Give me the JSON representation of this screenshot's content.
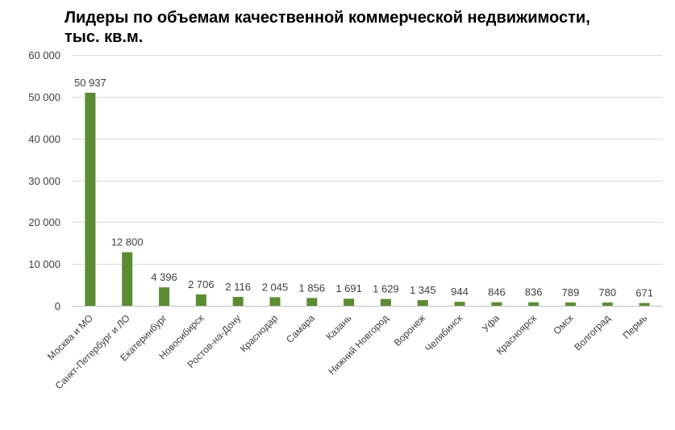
{
  "chart_data": {
    "type": "bar",
    "title_line1": "Лидеры по объемам качественной коммерческой недвижимости,",
    "title_line2": "тыс. кв.м.",
    "categories": [
      "Москва и МО",
      "Санкт-Петербург и ЛО",
      "Екатеринбург",
      "Новосибирск",
      "Ростов-на-Дону",
      "Краснодар",
      "Самара",
      "Казань",
      "Нижний Новгород",
      "Воронеж",
      "Челябинск",
      "Уфа",
      "Красноярск",
      "Омск",
      "Волгоград",
      "Пермь"
    ],
    "values": [
      50937,
      12800,
      4396,
      2706,
      2116,
      2045,
      1856,
      1691,
      1629,
      1345,
      944,
      846,
      836,
      789,
      780,
      671
    ],
    "data_labels": [
      "50 937",
      "12 800",
      "4 396",
      "2 706",
      "2 116",
      "2 045",
      "1 856",
      "1 691",
      "1 629",
      "1 345",
      "944",
      "846",
      "836",
      "789",
      "780",
      "671"
    ],
    "y_ticks": [
      0,
      10000,
      20000,
      30000,
      40000,
      50000,
      60000
    ],
    "y_tick_labels": [
      "0",
      "10 000",
      "20 000",
      "30 000",
      "40 000",
      "50 000",
      "60 000"
    ],
    "ylim": [
      0,
      60000
    ],
    "grid": true,
    "legend": "none",
    "bar_color": "#5b8c32",
    "grid_color": "#d9d9d9"
  }
}
